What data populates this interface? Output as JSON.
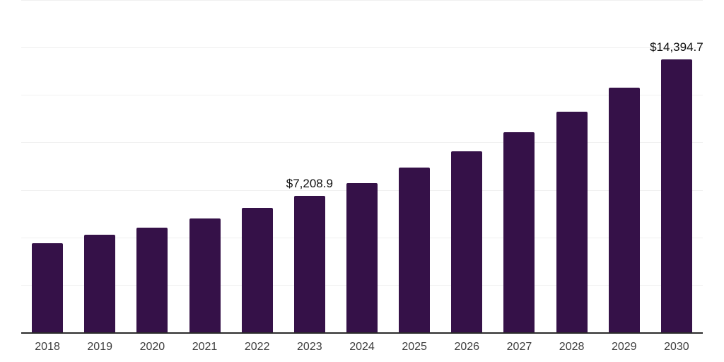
{
  "chart_data": {
    "type": "bar",
    "title": "",
    "xlabel": "",
    "ylabel": "",
    "categories": [
      "2018",
      "2019",
      "2020",
      "2021",
      "2022",
      "2023",
      "2024",
      "2025",
      "2026",
      "2027",
      "2028",
      "2029",
      "2030"
    ],
    "values": [
      4725,
      5160,
      5555,
      6050,
      6585,
      7208.9,
      7900,
      8715,
      9560,
      10575,
      11670,
      12935,
      14394.7
    ],
    "point_labels": [
      "",
      "",
      "",
      "",
      "",
      "$7,208.9",
      "",
      "",
      "",
      "",
      "",
      "",
      "$14,394.7"
    ],
    "ylim": [
      0,
      17500
    ],
    "gridline_interval": 2500,
    "grid": true,
    "legend": false,
    "colors": {
      "bar": "#351148",
      "axis_line": "#2b2b2b",
      "gridline": "#f0f0f0",
      "data_label": "#0f0f0f",
      "tick_label": "#3d3d3d",
      "background": "#ffffff"
    }
  }
}
